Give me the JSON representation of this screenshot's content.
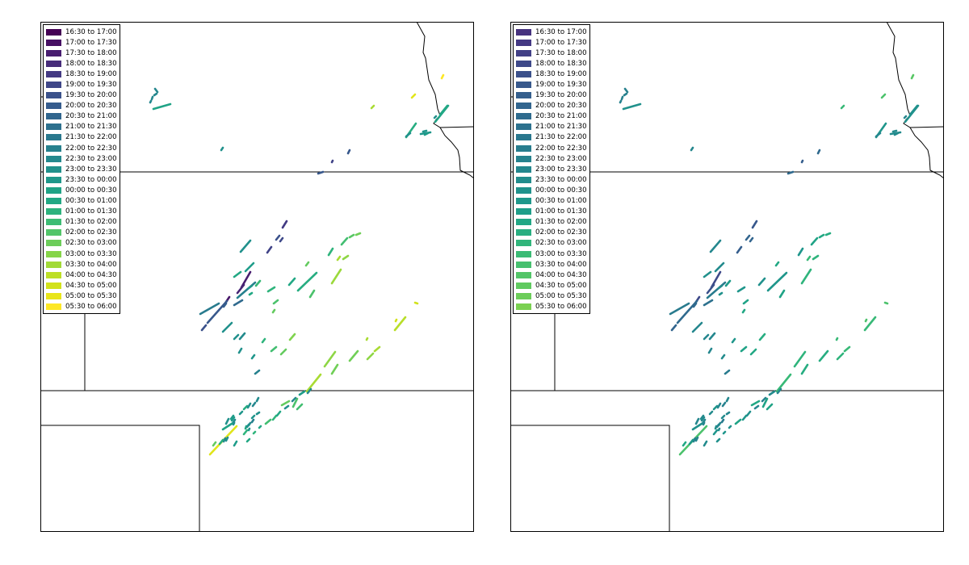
{
  "colors": {
    "background": "#ffffff",
    "boundary": "#000000",
    "track_palette": [
      "#440154",
      "#46085c",
      "#471063",
      "#481769",
      "#481d6f",
      "#472575",
      "#462c7b",
      "#453480",
      "#433a83",
      "#404387",
      "#3e4989",
      "#3b518b",
      "#38588c",
      "#355e8d",
      "#32658e",
      "#306a8e",
      "#2d718e",
      "#2b768e",
      "#297b8e",
      "#27818e",
      "#25878e",
      "#238b8d",
      "#21918c",
      "#1f968b",
      "#1f9d8a",
      "#20a386",
      "#22a884",
      "#27ad81",
      "#2fb47c",
      "#38b977",
      "#42be71",
      "#4cc26c",
      "#58c765",
      "#64cb5f",
      "#70cf57",
      "#7fd34e",
      "#8ed645",
      "#9bd93c",
      "#a9db33",
      "#b8de29",
      "#c5e021",
      "#d2e21b",
      "#e1e51a",
      "#eae51a",
      "#fde725"
    ]
  },
  "maps": [
    {
      "legend": {
        "entries": [
          {
            "label": "16:30 to 17:00",
            "color": "#440154"
          },
          {
            "label": "17:00 to 17:30",
            "color": "#471063"
          },
          {
            "label": "17:30 to 18:00",
            "color": "#481d6f"
          },
          {
            "label": "18:00 to 18:30",
            "color": "#472c7a"
          },
          {
            "label": "18:30 to 19:00",
            "color": "#443a83"
          },
          {
            "label": "19:00 to 19:30",
            "color": "#3f4788"
          },
          {
            "label": "19:30 to 20:00",
            "color": "#3b528b"
          },
          {
            "label": "20:00 to 20:30",
            "color": "#365c8d"
          },
          {
            "label": "20:30 to 21:00",
            "color": "#31668e"
          },
          {
            "label": "21:00 to 21:30",
            "color": "#2d708e"
          },
          {
            "label": "21:30 to 22:00",
            "color": "#2a788e"
          },
          {
            "label": "22:00 to 22:30",
            "color": "#27818e"
          },
          {
            "label": "22:30 to 23:00",
            "color": "#24898e"
          },
          {
            "label": "23:00 to 23:30",
            "color": "#21918c"
          },
          {
            "label": "23:30 to 00:00",
            "color": "#1f988b"
          },
          {
            "label": "00:00 to 00:30",
            "color": "#20a386"
          },
          {
            "label": "00:30 to 01:00",
            "color": "#22a884"
          },
          {
            "label": "01:00 to 01:30",
            "color": "#2db27d"
          },
          {
            "label": "01:30 to 02:00",
            "color": "#3dbc74"
          },
          {
            "label": "02:00 to 02:30",
            "color": "#52c569"
          },
          {
            "label": "02:30 to 03:00",
            "color": "#6ccd5a"
          },
          {
            "label": "03:00 to 03:30",
            "color": "#86d549"
          },
          {
            "label": "03:30 to 04:00",
            "color": "#a2da37"
          },
          {
            "label": "04:00 to 04:30",
            "color": "#bddf26"
          },
          {
            "label": "04:30 to 05:00",
            "color": "#d2e21b"
          },
          {
            "label": "05:00 to 05:30",
            "color": "#e8e51a"
          },
          {
            "label": "05:30 to 06:00",
            "color": "#fde725"
          }
        ]
      }
    },
    {
      "legend": {
        "entries": [
          {
            "label": "16:30 to 17:00",
            "color": "#46327e"
          },
          {
            "label": "17:00 to 17:30",
            "color": "#443983"
          },
          {
            "label": "17:30 to 18:00",
            "color": "#424086"
          },
          {
            "label": "18:00 to 18:30",
            "color": "#3e4989"
          },
          {
            "label": "18:30 to 19:00",
            "color": "#3b518b"
          },
          {
            "label": "19:00 to 19:30",
            "color": "#38598c"
          },
          {
            "label": "19:30 to 20:00",
            "color": "#355f8d"
          },
          {
            "label": "20:00 to 20:30",
            "color": "#32658e"
          },
          {
            "label": "20:30 to 21:00",
            "color": "#2f6b8e"
          },
          {
            "label": "21:00 to 21:30",
            "color": "#2c718e"
          },
          {
            "label": "21:30 to 22:00",
            "color": "#2a778e"
          },
          {
            "label": "22:00 to 22:30",
            "color": "#287d8e"
          },
          {
            "label": "22:30 to 23:00",
            "color": "#26828e"
          },
          {
            "label": "23:00 to 23:30",
            "color": "#24878e"
          },
          {
            "label": "23:30 to 00:00",
            "color": "#228d8d"
          },
          {
            "label": "00:00 to 00:30",
            "color": "#20928c"
          },
          {
            "label": "00:30 to 01:00",
            "color": "#1f988b"
          },
          {
            "label": "01:00 to 01:30",
            "color": "#1f9e89"
          },
          {
            "label": "01:30 to 02:00",
            "color": "#22a785"
          },
          {
            "label": "02:00 to 02:30",
            "color": "#28ae80"
          },
          {
            "label": "02:30 to 03:00",
            "color": "#31b57b"
          },
          {
            "label": "03:00 to 03:30",
            "color": "#3bbb75"
          },
          {
            "label": "03:30 to 04:00",
            "color": "#47c06f"
          },
          {
            "label": "04:00 to 04:30",
            "color": "#53c568"
          },
          {
            "label": "04:30 to 05:00",
            "color": "#60ca60"
          },
          {
            "label": "05:00 to 05:30",
            "color": "#6ccd5a"
          },
          {
            "label": "05:30 to 06:00",
            "color": "#7ad151"
          }
        ]
      }
    }
  ]
}
